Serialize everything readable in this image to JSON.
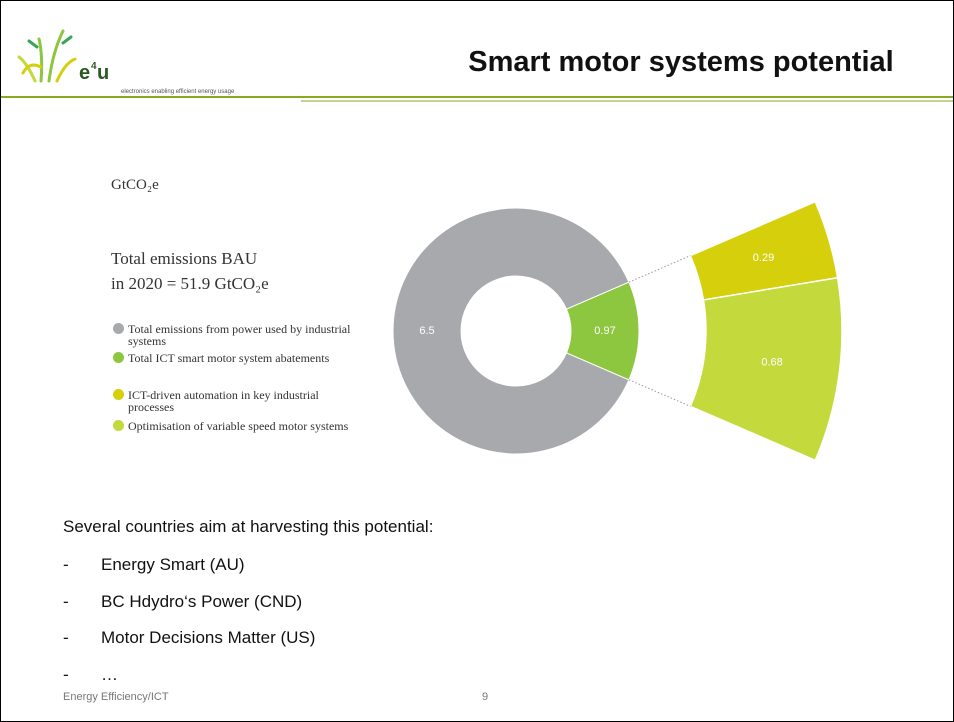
{
  "header": {
    "title": "Smart motor systems potential",
    "logo": {
      "name_parts": [
        "e",
        "4",
        "u"
      ],
      "tagline": "electronics enabling efficient energy usage"
    }
  },
  "chart_data": {
    "type": "donut",
    "unit": "GtCO₂e",
    "subtitle": [
      "Total emissions BAU",
      "in 2020 = 51.9 GtCO₂e"
    ],
    "categories": [
      "Total emissions from power used by industrial systems",
      "Total ICT smart motor system abatements"
    ],
    "values": [
      6.5,
      0.97
    ],
    "colors": [
      "#a7a9ac",
      "#8dc63f"
    ],
    "breakdown": {
      "categories": [
        "ICT-driven automation in key industrial processes",
        "Optimisation of variable speed motor systems"
      ],
      "values": [
        0.29,
        0.68
      ],
      "colors": [
        "#d5cf0c",
        "#c4d93c"
      ]
    }
  },
  "body": {
    "intro": "Several countries aim at harvesting this potential:",
    "bullets": [
      "Energy Smart (AU)",
      "BC Hdydro‘s Power (CND)",
      "Motor Decisions Matter (US)",
      "…"
    ]
  },
  "footer": {
    "left": "Energy Efficiency/ICT",
    "page": "9"
  }
}
